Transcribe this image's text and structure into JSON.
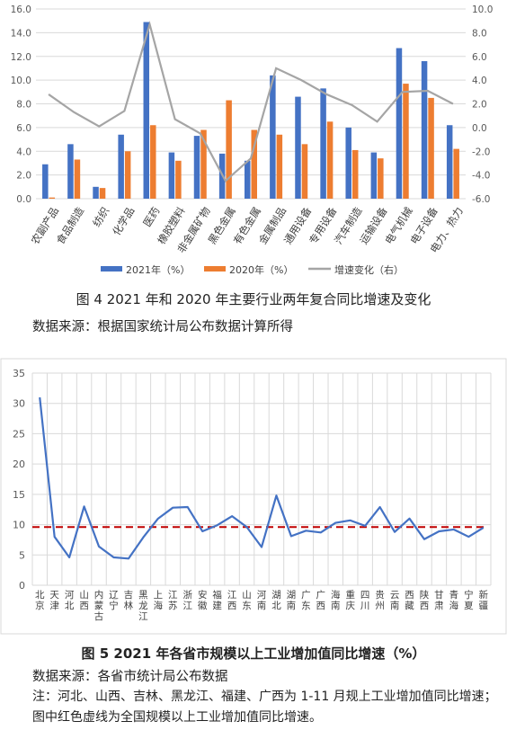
{
  "figure4": {
    "caption": "图 4   2021 年和 2020 年主要行业两年复合同比增速及变化",
    "source": "数据来源：根据国家统计局公布数据计算所得",
    "chart_data": {
      "type": "bar",
      "categories": [
        "农副产品",
        "食品制造",
        "纺织",
        "化学品",
        "医药",
        "橡胶塑料",
        "非金属矿物",
        "黑色金属",
        "有色金属",
        "金属制品",
        "通用设备",
        "专用设备",
        "汽车制造",
        "运输设备",
        "电气机械",
        "电子设备",
        "电力、热力"
      ],
      "series": [
        {
          "name": "2021年（%）",
          "type": "bar",
          "axis": "left",
          "color": "#4472c4",
          "values": [
            2.9,
            4.6,
            1.0,
            5.4,
            14.9,
            3.9,
            5.3,
            3.8,
            3.2,
            10.4,
            8.6,
            9.3,
            6.0,
            3.9,
            12.7,
            11.6,
            6.2
          ]
        },
        {
          "name": "2020年（%）",
          "type": "bar",
          "axis": "left",
          "color": "#ed7d31",
          "values": [
            0.1,
            3.3,
            0.9,
            4.0,
            6.2,
            3.2,
            5.8,
            8.3,
            5.8,
            5.4,
            4.6,
            6.5,
            4.1,
            3.4,
            9.7,
            8.5,
            4.2
          ]
        },
        {
          "name": "增速变化（右）",
          "type": "line",
          "axis": "right",
          "color": "#a5a5a5",
          "values": [
            2.8,
            1.3,
            0.1,
            1.4,
            8.7,
            0.7,
            -0.5,
            -4.5,
            -2.6,
            5.0,
            4.0,
            2.8,
            1.9,
            0.5,
            3.0,
            3.1,
            2.0
          ]
        }
      ],
      "ylim_left": [
        0,
        16
      ],
      "yticks_left": [
        "0.0",
        "2.0",
        "4.0",
        "6.0",
        "8.0",
        "10.0",
        "12.0",
        "14.0",
        "16.0"
      ],
      "ylim_right": [
        -6,
        10
      ],
      "yticks_right": [
        "-6.0",
        "-4.0",
        "-2.0",
        "0.0",
        "2.0",
        "4.0",
        "6.0",
        "8.0",
        "10.0"
      ],
      "grid": true,
      "legend_position": "bottom"
    }
  },
  "figure5": {
    "caption": "图 5   2021 年各省市规模以上工业增加值同比增速（%）",
    "source": "数据来源：各省市统计局公布数据",
    "note": "注：河北、山西、吉林、黑龙江、福建、广西为 1-11 月规上工业增加值同比增速；图中红色虚线为全国规模以上工业增加值同比增速。",
    "chart_data": {
      "type": "line",
      "categories": [
        "北京",
        "天津",
        "河北",
        "山西",
        "内蒙古",
        "辽宁",
        "吉林",
        "黑龙江",
        "上海",
        "江苏",
        "浙江",
        "安徽",
        "福建",
        "江西",
        "山东",
        "河南",
        "湖北",
        "湖南",
        "广东",
        "广西",
        "海南",
        "重庆",
        "四川",
        "贵州",
        "云南",
        "西藏",
        "陕西",
        "甘肃",
        "青海",
        "宁夏",
        "新疆"
      ],
      "series": [
        {
          "name": "",
          "color": "#4472c4",
          "values": [
            31.0,
            8.0,
            4.6,
            13.0,
            6.4,
            4.6,
            4.4,
            7.9,
            11.0,
            12.8,
            12.9,
            8.9,
            9.9,
            11.4,
            9.6,
            6.3,
            14.8,
            8.1,
            9.0,
            8.7,
            10.3,
            10.7,
            9.8,
            12.9,
            8.8,
            11.0,
            7.6,
            8.9,
            9.2,
            8.0,
            9.5
          ]
        }
      ],
      "reference_line": {
        "value": 9.6,
        "color": "#c00000",
        "style": "dashed"
      },
      "ylim": [
        0,
        35
      ],
      "yticks": [
        "0",
        "5",
        "10",
        "15",
        "20",
        "25",
        "30",
        "35"
      ],
      "grid": true
    }
  }
}
